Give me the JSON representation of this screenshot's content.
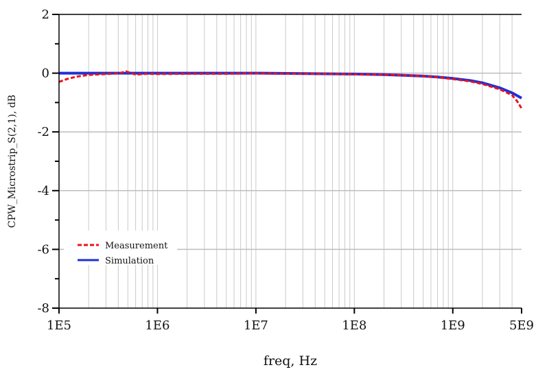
{
  "chart_data": {
    "type": "line",
    "xscale": "log",
    "xlabel": "freq, Hz",
    "ylabel": "CPW_Microstrip_S(2,1), dB",
    "xlim": [
      100000,
      5000000000
    ],
    "ylim": [
      -8,
      2
    ],
    "x_tick_labels": [
      "1E5",
      "1E6",
      "1E7",
      "1E8",
      "1E9",
      "5E9"
    ],
    "x_tick_values": [
      100000,
      1000000,
      10000000,
      100000000,
      1000000000,
      5000000000
    ],
    "y_tick_labels": [
      "2",
      "0",
      "-2",
      "-4",
      "-6",
      "-8"
    ],
    "y_tick_values": [
      2,
      0,
      -2,
      -4,
      -6,
      -8
    ],
    "grid": true,
    "legend_position": "lower-left",
    "series": [
      {
        "name": "Measurement",
        "color": "#e8141c",
        "style": "dashed",
        "x": [
          100000,
          120000,
          150000,
          200000,
          300000,
          400000,
          480000,
          600000,
          800000,
          1000000,
          2000000,
          5000000,
          10000000,
          20000000,
          50000000,
          100000000,
          200000000,
          300000000,
          500000000,
          700000000,
          1000000000,
          1500000000,
          2000000000,
          3000000000,
          4000000000,
          4500000000,
          5000000000
        ],
        "y": [
          -0.3,
          -0.2,
          -0.12,
          -0.06,
          -0.03,
          -0.01,
          0.06,
          -0.05,
          -0.02,
          -0.03,
          -0.02,
          -0.02,
          -0.01,
          -0.02,
          -0.02,
          -0.04,
          -0.05,
          -0.07,
          -0.1,
          -0.14,
          -0.2,
          -0.28,
          -0.37,
          -0.55,
          -0.75,
          -0.95,
          -1.2
        ]
      },
      {
        "name": "Simulation",
        "color": "#1f2fd6",
        "style": "solid",
        "x": [
          100000,
          1000000,
          10000000,
          100000000,
          200000000,
          300000000,
          500000000,
          700000000,
          1000000000,
          1500000000,
          2000000000,
          3000000000,
          4000000000,
          5000000000
        ],
        "y": [
          0,
          0,
          0,
          -0.03,
          -0.05,
          -0.07,
          -0.1,
          -0.13,
          -0.18,
          -0.25,
          -0.33,
          -0.5,
          -0.67,
          -0.85
        ]
      }
    ]
  }
}
